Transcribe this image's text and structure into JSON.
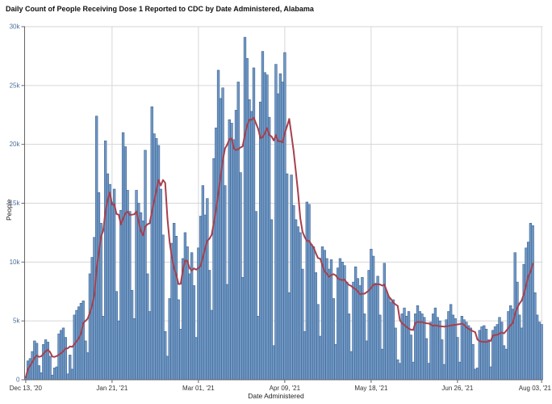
{
  "chart_data": {
    "type": "bar",
    "title": "Daily Count of People Receiving Dose 1 Reported to CDC by Date Administered, Alabama",
    "xlabel": "Date Administered",
    "ylabel": "People",
    "x_unit": "day",
    "x_tick_labels": [
      "Dec 13, '20",
      "Jan 21, '21",
      "Mar 01, '21",
      "Apr 09, '21",
      "May 18, '21",
      "Jun 26, '21",
      "Aug 03, '21"
    ],
    "x_tick_day_indices": [
      0,
      39,
      78,
      117,
      156,
      195,
      233
    ],
    "y_tick_values": [
      0,
      5000,
      10000,
      15000,
      20000,
      25000,
      30000
    ],
    "y_tick_labels": [
      "0",
      "5k",
      "10k",
      "15k",
      "20k",
      "25k",
      "30k"
    ],
    "ylim": [
      0,
      30000
    ],
    "grid": true,
    "bar_series": {
      "name": "People receiving dose 1 per day",
      "fill": "#7199c5",
      "stroke": "#3e6392",
      "values": [
        200,
        1600,
        1800,
        2400,
        3300,
        3100,
        1200,
        600,
        3000,
        3400,
        3200,
        2000,
        400,
        1000,
        1100,
        3900,
        4200,
        4400,
        3600,
        500,
        2100,
        900,
        5500,
        5900,
        6200,
        6500,
        6700,
        3300,
        2300,
        9000,
        10400,
        12100,
        22400,
        15900,
        13300,
        5400,
        20300,
        17500,
        16600,
        15100,
        16200,
        7500,
        5000,
        14400,
        21000,
        19800,
        16100,
        14300,
        7600,
        5200,
        16100,
        15000,
        14200,
        13500,
        19500,
        9000,
        5800,
        23200,
        20900,
        20500,
        19900,
        16200,
        12300,
        4100,
        2000,
        6900,
        11600,
        13300,
        12200,
        6800,
        4300,
        10300,
        12500,
        11300,
        9000,
        10800,
        8000,
        3600,
        11200,
        13900,
        16500,
        14000,
        15400,
        9300,
        5900,
        18800,
        21400,
        26300,
        23900,
        24800,
        16500,
        8100,
        22100,
        21800,
        20400,
        22900,
        25300,
        17600,
        8700,
        29100,
        27300,
        23800,
        22800,
        26500,
        14300,
        5400,
        23600,
        27900,
        26100,
        25900,
        22300,
        13600,
        2900,
        26800,
        24300,
        26000,
        25300,
        27800,
        17500,
        7400,
        17400,
        14800,
        13600,
        13000,
        12500,
        9400,
        4100,
        15100,
        14900,
        11500,
        11300,
        9100,
        6400,
        3700,
        11300,
        11000,
        10300,
        9400,
        10200,
        6900,
        3000,
        9500,
        10300,
        10000,
        9700,
        8300,
        5600,
        2400,
        8300,
        9600,
        8600,
        8000,
        8700,
        5600,
        3300,
        9300,
        11100,
        10500,
        8200,
        8800,
        5500,
        2600,
        9900,
        7500,
        7000,
        6600,
        6800,
        4400,
        1700,
        1400,
        5600,
        6100,
        5400,
        5800,
        3800,
        1500,
        5600,
        6300,
        5800,
        5600,
        5300,
        3500,
        1400,
        4900,
        5600,
        6100,
        5300,
        5000,
        3400,
        1300,
        5100,
        5800,
        6400,
        5500,
        5200,
        3600,
        1500,
        5400,
        5100,
        4900,
        4600,
        4400,
        3000,
        900,
        1000,
        4200,
        4500,
        4600,
        4300,
        3400,
        1100,
        4200,
        4500,
        4700,
        5300,
        4900,
        2900,
        2600,
        5800,
        6300,
        6000,
        10800,
        8300,
        5500,
        4400,
        9800,
        11200,
        11700,
        13300,
        13100,
        7400,
        5500,
        4900,
        4700
      ]
    },
    "line_series": {
      "name": "7-day moving average",
      "color": "#a7404e",
      "derivation": "trailing 7-day mean of daily bar values",
      "last_day_index": 229
    }
  },
  "colors": {
    "background": "#ffffff",
    "gridline": "#d6d6d6",
    "axis": "#666666",
    "y_tick_label": "#4d7099",
    "x_tick_label": "#333333",
    "title": "#111111"
  }
}
